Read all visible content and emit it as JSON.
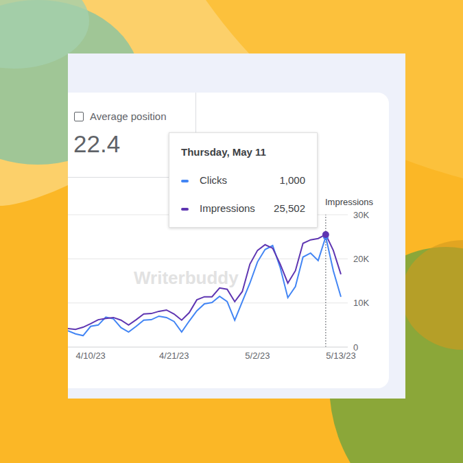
{
  "card": {
    "checkbox_label": "Average position",
    "value": 22.4
  },
  "watermark": "Writerbuddy",
  "chart_data": {
    "type": "line",
    "categories": [
      null,
      null,
      null,
      "4/10/23",
      null,
      null,
      null,
      null,
      null,
      null,
      null,
      null,
      null,
      null,
      "4/21/23",
      null,
      null,
      null,
      null,
      null,
      null,
      null,
      null,
      null,
      null,
      "5/2/23",
      null,
      null,
      null,
      null,
      null,
      null,
      null,
      null,
      null,
      null,
      "5/13/23"
    ],
    "y_label": "Impressions",
    "ylim": [
      0,
      30000
    ],
    "yticks": [
      0,
      {
        "value": 10000,
        "label": "10K"
      },
      {
        "value": 20000,
        "label": "20K"
      },
      {
        "value": 30000,
        "label": "30K"
      }
    ],
    "y2lim": [
      0,
      1200
    ],
    "grid": true,
    "series": [
      {
        "name": "Clicks",
        "color": "#4285f4",
        "axis": "y2",
        "values": [
          148,
          120,
          104,
          188,
          200,
          272,
          256,
          176,
          136,
          188,
          244,
          248,
          280,
          268,
          232,
          136,
          236,
          328,
          392,
          404,
          460,
          412,
          244,
          412,
          580,
          772,
          884,
          920,
          720,
          448,
          548,
          816,
          852,
          784,
          1000,
          692,
          456
        ]
      },
      {
        "name": "Impressions",
        "color": "#5e35b1",
        "values": [
          4200,
          4000,
          4500,
          5300,
          6200,
          6500,
          6700,
          6100,
          5000,
          6200,
          7500,
          7600,
          8100,
          8400,
          7500,
          6100,
          7800,
          10700,
          11400,
          11400,
          13400,
          13100,
          10300,
          12600,
          18800,
          21900,
          23200,
          22400,
          18800,
          14500,
          17300,
          23500,
          24300,
          24600,
          25502,
          21900,
          16500
        ]
      }
    ],
    "tooltip": {
      "title": "Thursday, May 11",
      "index": 34,
      "rows": [
        {
          "name": "Clicks",
          "value": 1000,
          "label": "1,000"
        },
        {
          "name": "Impressions",
          "value": 25502,
          "label": "25,502"
        }
      ]
    }
  }
}
